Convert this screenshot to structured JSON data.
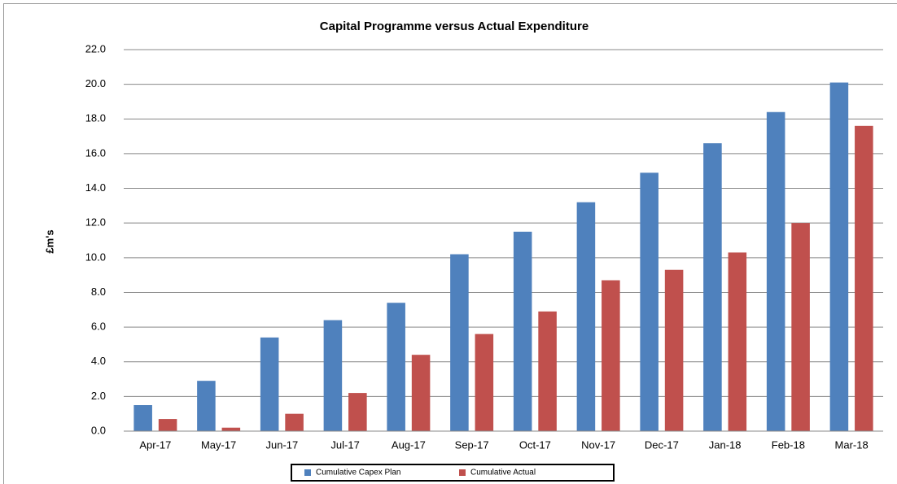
{
  "chart_data": {
    "type": "bar",
    "title": "Capital Programme versus Actual Expenditure",
    "y_label": "£m's",
    "categories": [
      "Apr-17",
      "May-17",
      "Jun-17",
      "Jul-17",
      "Aug-17",
      "Sep-17",
      "Oct-17",
      "Nov-17",
      "Dec-17",
      "Jan-18",
      "Feb-18",
      "Mar-18"
    ],
    "series": [
      {
        "name": "Cumulative Capex Plan",
        "color": "#4f81bd",
        "values": [
          1.5,
          2.9,
          5.4,
          6.4,
          7.4,
          10.2,
          11.5,
          13.2,
          14.9,
          16.6,
          18.4,
          20.1
        ]
      },
      {
        "name": "Cumulative Actual",
        "color": "#c0504d",
        "values": [
          0.7,
          0.2,
          1.0,
          2.2,
          4.4,
          5.6,
          6.9,
          8.7,
          9.3,
          10.3,
          12.0,
          17.6
        ]
      }
    ],
    "ylim": [
      0,
      22
    ],
    "yticks": [
      {
        "value": 0,
        "label": "0.0"
      },
      {
        "value": 2,
        "label": "2.0"
      },
      {
        "value": 4,
        "label": "4.0"
      },
      {
        "value": 6,
        "label": "6.0"
      },
      {
        "value": 8,
        "label": "8.0"
      },
      {
        "value": 10,
        "label": "10.0"
      },
      {
        "value": 12,
        "label": "12.0"
      },
      {
        "value": 14,
        "label": "14.0"
      },
      {
        "value": 16,
        "label": "16.0"
      },
      {
        "value": 18,
        "label": "18.0"
      },
      {
        "value": 20,
        "label": "20.0"
      },
      {
        "value": 22,
        "label": "22.0"
      }
    ],
    "grid": true,
    "legend": "bottom"
  }
}
